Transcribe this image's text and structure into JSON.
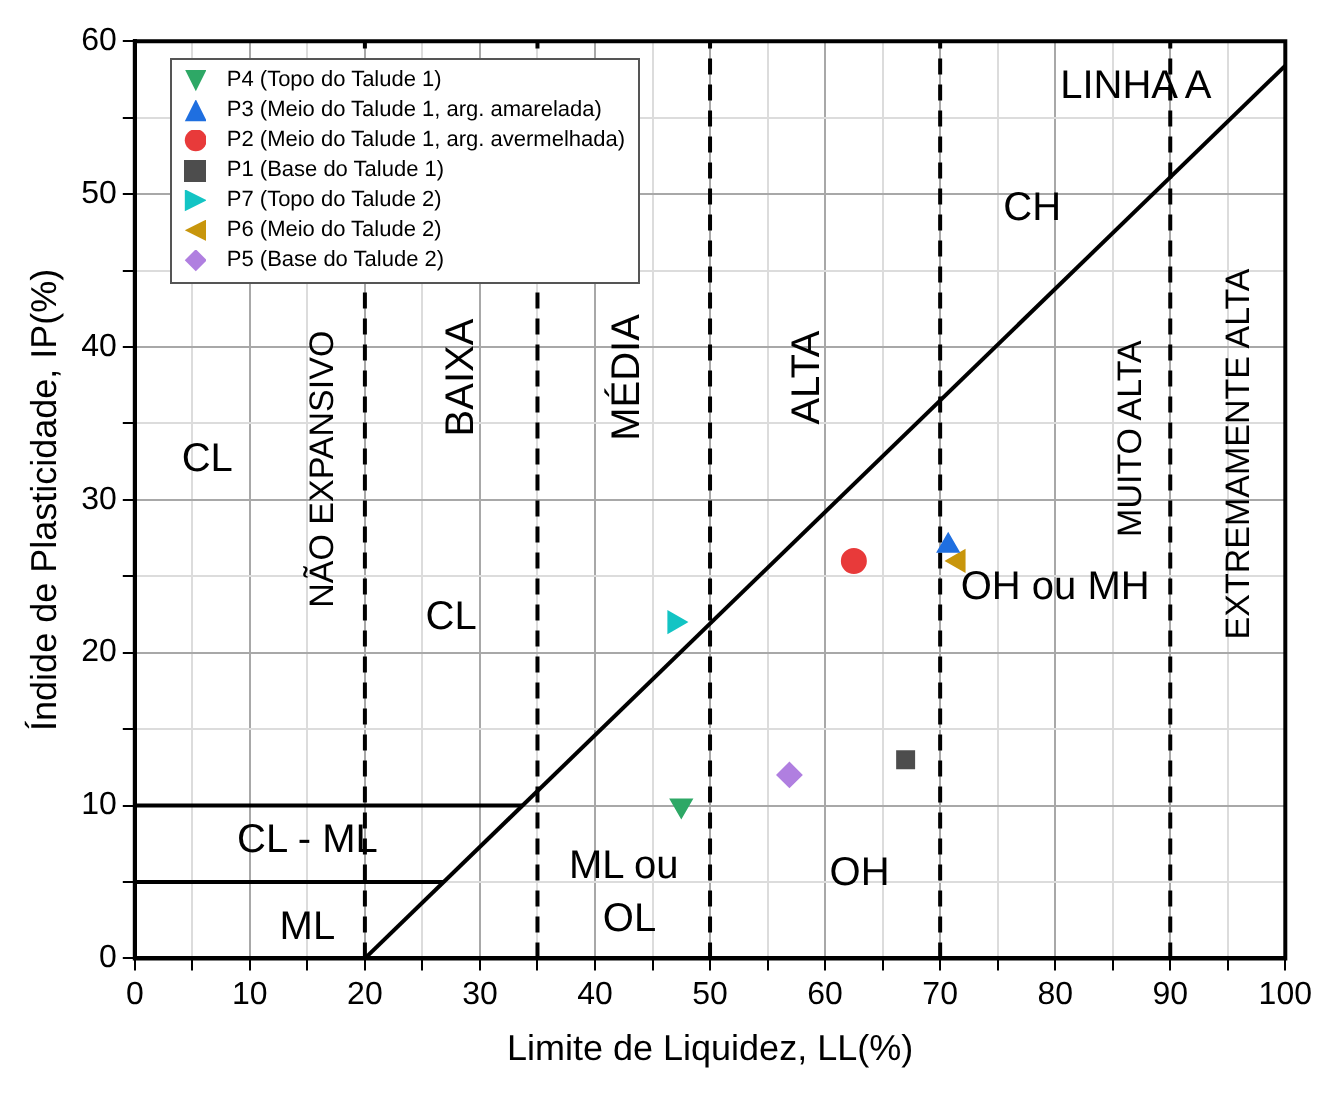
{
  "chart_data": {
    "type": "scatter",
    "xlabel": "Limite de Liquidez, LL(%)",
    "ylabel": "Índide de Plasticidade, IP(%)",
    "xlim": [
      0,
      100
    ],
    "ylim": [
      0,
      60
    ],
    "xticks": [
      0,
      {
        "value": 5,
        "label": null
      },
      10,
      {
        "value": 15,
        "label": null
      },
      20,
      {
        "value": 25,
        "label": null
      },
      30,
      {
        "value": 35,
        "label": null
      },
      40,
      {
        "value": 45,
        "label": null
      },
      50,
      {
        "value": 55,
        "label": null
      },
      60,
      {
        "value": 65,
        "label": null
      },
      70,
      {
        "value": 75,
        "label": null
      },
      80,
      {
        "value": 85,
        "label": null
      },
      90,
      {
        "value": 95,
        "label": null
      },
      100
    ],
    "yticks": [
      0,
      {
        "value": 5,
        "label": null
      },
      10,
      {
        "value": 15,
        "label": null
      },
      20,
      {
        "value": 25,
        "label": null
      },
      30,
      {
        "value": 35,
        "label": null
      },
      40,
      {
        "value": 45,
        "label": null
      },
      50,
      {
        "value": 55,
        "label": null
      },
      60
    ],
    "grid": true,
    "legend": "top left",
    "series": [
      {
        "name": "P4 (Topo do Talude 1)",
        "color": "#2ea866",
        "marker": "triangle-down",
        "x": [
          47.5
        ],
        "values": [
          10
        ]
      },
      {
        "name": "P3 (Meio do Talude 1, arg. amarelada)",
        "color": "#1f6fe0",
        "marker": "triangle",
        "x": [
          70.7
        ],
        "values": [
          27
        ]
      },
      {
        "name": "P2 (Meio do Talude 1, arg. avermelhada)",
        "color": "#e83a3a",
        "marker": "circle",
        "x": [
          62.5
        ],
        "values": [
          26
        ]
      },
      {
        "name": "P1 (Base do Talude 1)",
        "color": "#4d4d4d",
        "marker": "square",
        "x": [
          67
        ],
        "values": [
          13
        ]
      },
      {
        "name": "P7 (Topo do Talude 2)",
        "color": "#13c4c4",
        "marker": "triangle-right",
        "x": [
          46.9
        ],
        "values": [
          22
        ]
      },
      {
        "name": "P6 (Meio do Talude 2)",
        "color": "#c8960c",
        "marker": "triangle-left",
        "x": [
          71.6
        ],
        "values": [
          26
        ]
      },
      {
        "name": "P5 (Base do Talude 2)",
        "color": "#b07fe0",
        "marker": "diamond",
        "x": [
          56.9
        ],
        "values": [
          12
        ]
      },
      {
        "type": "line",
        "color": "#000000",
        "marker": "none",
        "x": [
          20,
          100
        ],
        "values": [
          0,
          58.4
        ]
      },
      {
        "type": "line",
        "color": "#000000",
        "marker": "none",
        "x": [
          0,
          33.7
        ],
        "values": [
          10,
          10
        ]
      },
      {
        "type": "line",
        "color": "#000000",
        "marker": "none",
        "x": [
          0,
          26.8
        ],
        "values": [
          5,
          5
        ]
      }
    ],
    "ref_lines": [
      {
        "axis": "x",
        "value": 20,
        "color": "#000000",
        "line_style": "dashed"
      },
      {
        "axis": "x",
        "value": 35,
        "color": "#000000",
        "line_style": "dashed"
      },
      {
        "axis": "x",
        "value": 50,
        "color": "#000000",
        "line_style": "dashed"
      },
      {
        "axis": "x",
        "value": 70,
        "color": "#000000",
        "line_style": "dashed"
      },
      {
        "axis": "x",
        "value": 90,
        "color": "#000000",
        "line_style": "dashed"
      }
    ],
    "annotations": [
      "CL",
      "NÃO EXPANSIVO",
      "BAIXA",
      "MÉDIA",
      "ALTA",
      "MUITO ALTA",
      "EXTREMAMENTE ALTA",
      "CL",
      "CL - ML",
      "ML",
      "ML ou",
      "OL",
      "OH",
      "CH",
      "LINHA A",
      "OH ou MH"
    ]
  }
}
